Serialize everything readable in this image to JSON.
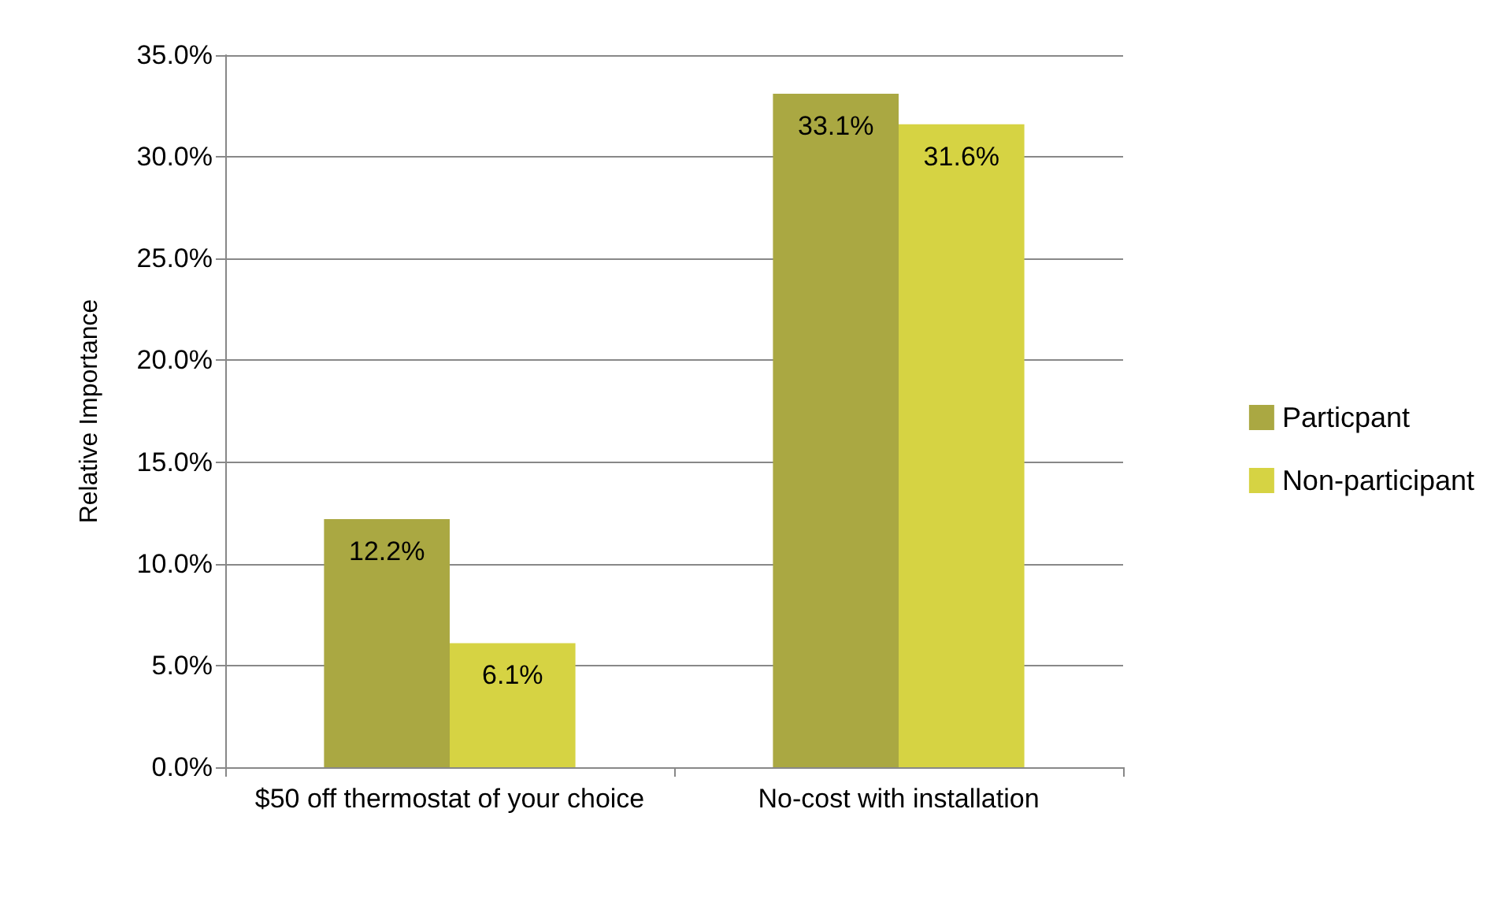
{
  "chart_data": {
    "type": "bar",
    "ylabel": "Relative Importance",
    "categories": [
      "$50 off thermostat of your choice",
      "No-cost with installation"
    ],
    "series": [
      {
        "name": "Particpant",
        "color": "#aaa842",
        "values": [
          12.2,
          33.1
        ],
        "value_labels": [
          "12.2%",
          "33.1%"
        ]
      },
      {
        "name": "Non-participant",
        "color": "#d6d343",
        "values": [
          6.1,
          31.6
        ],
        "value_labels": [
          "6.1%",
          "31.6%"
        ]
      }
    ],
    "ylim": [
      0,
      35
    ],
    "yticks": [
      {
        "value": 0,
        "label": "0.0%"
      },
      {
        "value": 5,
        "label": "5.0%"
      },
      {
        "value": 10,
        "label": "10.0%"
      },
      {
        "value": 15,
        "label": "15.0%"
      },
      {
        "value": 20,
        "label": "20.0%"
      },
      {
        "value": 25,
        "label": "25.0%"
      },
      {
        "value": 30,
        "label": "30.0%"
      },
      {
        "value": 35,
        "label": "35.0%"
      }
    ],
    "grid": true,
    "legend": "right"
  }
}
